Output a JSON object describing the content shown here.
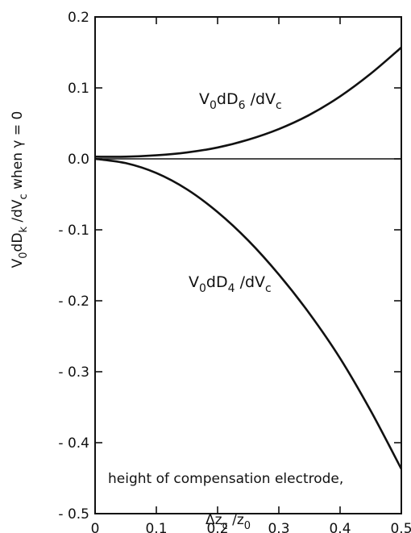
{
  "chart_data": {
    "type": "line",
    "title": "",
    "xlabel": "height of compensation electrode,",
    "xlabel_line2": "Δzᴄ /z₀",
    "ylabel": "V₀dDₖ /dVᴄ  when  γ = 0",
    "xlim": [
      0,
      0.5
    ],
    "ylim": [
      -0.5,
      0.2
    ],
    "x_ticks": [
      0,
      0.1,
      0.2,
      0.3,
      0.4,
      0.5
    ],
    "x_tick_labels": [
      "0",
      "0.1",
      "0.2",
      "0.3",
      "0.4",
      "0.5"
    ],
    "y_ticks": [
      0.2,
      0.1,
      0.0,
      -0.1,
      -0.2,
      -0.3,
      -0.4,
      -0.5
    ],
    "y_tick_labels": [
      "0.2",
      "0.1",
      "0.0",
      "- 0.1",
      "- 0.2",
      "- 0.3",
      "- 0.4",
      "- 0.5"
    ],
    "grid": false,
    "reference_line_y": 0,
    "series": [
      {
        "name": "V₀dD₆ /dVᴄ",
        "label_main": "V",
        "label_sub1": "0",
        "label_mid": "dD",
        "label_sub2": "6",
        "label_end": "/dV",
        "label_sub3": "c",
        "x": [
          0,
          0.05,
          0.1,
          0.15,
          0.2,
          0.25,
          0.3,
          0.35,
          0.4,
          0.45,
          0.5
        ],
        "values": [
          0.003,
          0.003,
          0.005,
          0.009,
          0.016,
          0.027,
          0.042,
          0.062,
          0.088,
          0.12,
          0.157
        ]
      },
      {
        "name": "V₀dD₄ /dVᴄ",
        "label_main": "V",
        "label_sub1": "0",
        "label_mid": "dD",
        "label_sub2": "4",
        "label_end": "/dV",
        "label_sub3": "c",
        "x": [
          0,
          0.05,
          0.1,
          0.15,
          0.2,
          0.25,
          0.3,
          0.35,
          0.4,
          0.45,
          0.5
        ],
        "values": [
          0.0,
          -0.006,
          -0.02,
          -0.043,
          -0.075,
          -0.115,
          -0.163,
          -0.218,
          -0.281,
          -0.355,
          -0.437
        ]
      }
    ]
  }
}
